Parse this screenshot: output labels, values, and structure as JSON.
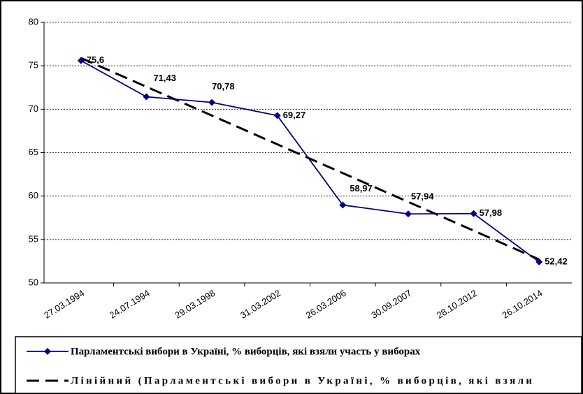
{
  "chart_data": {
    "type": "line",
    "categories": [
      "27.03.1994",
      "24.07.1994",
      "29.03.1998",
      "31.03.2002",
      "26.03.2006",
      "30.09.2007",
      "28.10.2012",
      "26.10.2014"
    ],
    "series": [
      {
        "name": "Парламентські вибори в Україні, % виборців, які взяли участь у виборах",
        "color": "#000080",
        "values": [
          75.6,
          71.43,
          70.78,
          69.27,
          58.97,
          57.94,
          57.98,
          52.42
        ],
        "value_labels": [
          "75,6",
          "71,43",
          "70,78",
          "69,27",
          "58,97",
          "57,94",
          "57,98",
          "52,42"
        ]
      }
    ],
    "trendline": {
      "name": "Лінійний (Парламентські вибори в Україні, % виборців, які взяли",
      "color": "#000000"
    },
    "ylim": [
      50,
      80
    ],
    "yticks": [
      50,
      55,
      60,
      65,
      70,
      75,
      80
    ],
    "grid": true
  }
}
